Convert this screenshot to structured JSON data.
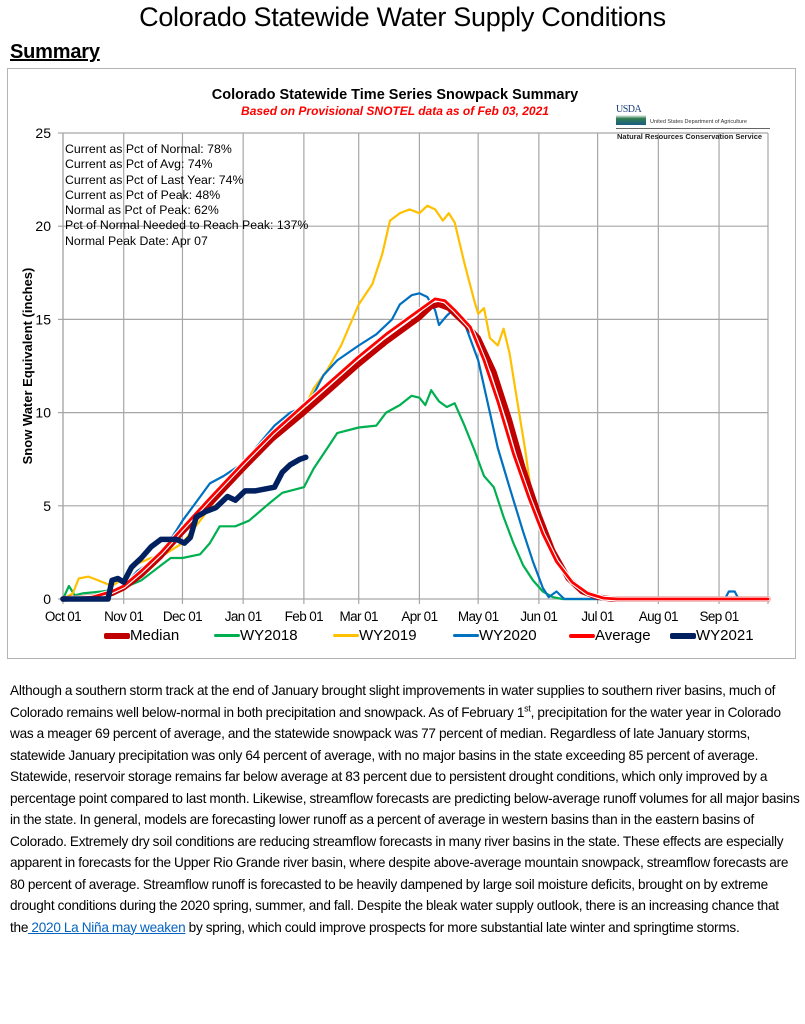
{
  "page": {
    "title": "Colorado Statewide Water Supply Conditions",
    "section_heading": "Summary"
  },
  "chart_data": {
    "type": "line",
    "title": "Colorado Statewide Time Series Snowpack Summary",
    "subtitle": "Based on Provisional SNOTEL data as of Feb 03, 2021",
    "xlabel": "",
    "ylabel": "Snow Water Equivalent (inches)",
    "ylim": [
      0,
      25
    ],
    "yticks": [
      "0",
      "5",
      "10",
      "15",
      "20",
      "25"
    ],
    "ytick_values": [
      0,
      5,
      10,
      15,
      20,
      25
    ],
    "xlim_days": [
      0,
      360
    ],
    "x_unit": "days since Oct 01",
    "xticks": [
      "Oct 01",
      "Nov 01",
      "Dec 01",
      "Jan 01",
      "Feb 01",
      "Mar 01",
      "Apr 01",
      "May 01",
      "Jun 01",
      "Jul 01",
      "Aug 01",
      "Sep 01"
    ],
    "xtick_days": [
      0,
      31,
      61,
      92,
      123,
      151,
      182,
      212,
      243,
      273,
      304,
      335
    ],
    "grid": true,
    "legend_position": "bottom",
    "logo": {
      "mark": "USDA",
      "department": "United States Department of Agriculture",
      "agency": "Natural Resources Conservation Service"
    },
    "stats": [
      "Current as Pct of Normal: 78%",
      "Current as Pct of Avg: 74%",
      "Current as Pct of Last Year: 74%",
      "Current as Pct of Peak: 48%",
      "Normal as Pct of Peak: 62%",
      "Pct of Normal Needed to Reach Peak: 137%",
      "Normal Peak Date: Apr 07"
    ],
    "series": [
      {
        "name": "Median",
        "color": "#c00000",
        "width": "thick",
        "points": [
          [
            0,
            0
          ],
          [
            15,
            0.1
          ],
          [
            25,
            0.3
          ],
          [
            31,
            0.6
          ],
          [
            40,
            1.3
          ],
          [
            50,
            2.3
          ],
          [
            61,
            3.6
          ],
          [
            75,
            5.1
          ],
          [
            92,
            7.0
          ],
          [
            107,
            8.6
          ],
          [
            123,
            10.0
          ],
          [
            137,
            11.3
          ],
          [
            151,
            12.6
          ],
          [
            165,
            13.8
          ],
          [
            182,
            15.1
          ],
          [
            188,
            15.7
          ],
          [
            192,
            15.8
          ],
          [
            197,
            15.6
          ],
          [
            205,
            14.8
          ],
          [
            212,
            14.0
          ],
          [
            220,
            12.2
          ],
          [
            228,
            9.6
          ],
          [
            235,
            7.0
          ],
          [
            243,
            4.5
          ],
          [
            250,
            2.6
          ],
          [
            258,
            1.1
          ],
          [
            265,
            0.4
          ],
          [
            273,
            0.1
          ],
          [
            280,
            0
          ],
          [
            360,
            0
          ]
        ]
      },
      {
        "name": "WY2018",
        "color": "#00b050",
        "width": "thin",
        "points": [
          [
            0,
            0
          ],
          [
            3,
            0.7
          ],
          [
            6,
            0.2
          ],
          [
            10,
            0.3
          ],
          [
            20,
            0.4
          ],
          [
            31,
            0.6
          ],
          [
            40,
            1.0
          ],
          [
            50,
            1.8
          ],
          [
            55,
            2.2
          ],
          [
            61,
            2.2
          ],
          [
            70,
            2.4
          ],
          [
            75,
            3.0
          ],
          [
            80,
            3.9
          ],
          [
            88,
            3.9
          ],
          [
            95,
            4.2
          ],
          [
            105,
            5.1
          ],
          [
            112,
            5.7
          ],
          [
            123,
            6.0
          ],
          [
            128,
            7.0
          ],
          [
            135,
            8.1
          ],
          [
            140,
            8.9
          ],
          [
            151,
            9.2
          ],
          [
            160,
            9.3
          ],
          [
            165,
            10.0
          ],
          [
            172,
            10.4
          ],
          [
            178,
            10.9
          ],
          [
            182,
            10.8
          ],
          [
            185,
            10.4
          ],
          [
            188,
            11.2
          ],
          [
            192,
            10.6
          ],
          [
            196,
            10.3
          ],
          [
            200,
            10.5
          ],
          [
            205,
            9.3
          ],
          [
            210,
            8.0
          ],
          [
            215,
            6.6
          ],
          [
            220,
            6.0
          ],
          [
            225,
            4.4
          ],
          [
            230,
            3.0
          ],
          [
            235,
            1.8
          ],
          [
            240,
            1.0
          ],
          [
            245,
            0.4
          ],
          [
            250,
            0.1
          ],
          [
            255,
            0
          ],
          [
            360,
            0
          ]
        ]
      },
      {
        "name": "WY2019",
        "color": "#ffc000",
        "width": "thin",
        "points": [
          [
            0,
            0
          ],
          [
            5,
            0.3
          ],
          [
            8,
            1.1
          ],
          [
            13,
            1.2
          ],
          [
            18,
            1.0
          ],
          [
            25,
            0.7
          ],
          [
            31,
            1.1
          ],
          [
            38,
            1.9
          ],
          [
            45,
            2.2
          ],
          [
            52,
            2.4
          ],
          [
            61,
            3.0
          ],
          [
            70,
            4.2
          ],
          [
            80,
            5.6
          ],
          [
            92,
            7.0
          ],
          [
            100,
            7.8
          ],
          [
            110,
            9.0
          ],
          [
            123,
            10.2
          ],
          [
            128,
            11.3
          ],
          [
            135,
            12.3
          ],
          [
            142,
            13.6
          ],
          [
            151,
            15.8
          ],
          [
            158,
            16.9
          ],
          [
            163,
            18.5
          ],
          [
            167,
            20.3
          ],
          [
            172,
            20.7
          ],
          [
            177,
            20.9
          ],
          [
            182,
            20.7
          ],
          [
            186,
            21.1
          ],
          [
            190,
            20.9
          ],
          [
            194,
            20.3
          ],
          [
            197,
            20.7
          ],
          [
            200,
            20.2
          ],
          [
            205,
            18.0
          ],
          [
            210,
            16.0
          ],
          [
            212,
            15.3
          ],
          [
            215,
            15.6
          ],
          [
            218,
            14.0
          ],
          [
            222,
            13.6
          ],
          [
            225,
            14.5
          ],
          [
            228,
            13.2
          ],
          [
            232,
            10.6
          ],
          [
            236,
            8.0
          ],
          [
            240,
            5.0
          ],
          [
            243,
            4.0
          ],
          [
            248,
            2.8
          ],
          [
            252,
            2.0
          ],
          [
            258,
            1.0
          ],
          [
            265,
            0.4
          ],
          [
            273,
            0.1
          ],
          [
            280,
            0
          ],
          [
            360,
            0
          ]
        ]
      },
      {
        "name": "WY2020",
        "color": "#0070c0",
        "width": "thin",
        "points": [
          [
            0,
            0
          ],
          [
            20,
            0.1
          ],
          [
            25,
            0.4
          ],
          [
            31,
            0.7
          ],
          [
            38,
            1.5
          ],
          [
            45,
            2.0
          ],
          [
            55,
            3.2
          ],
          [
            61,
            4.2
          ],
          [
            68,
            5.2
          ],
          [
            75,
            6.2
          ],
          [
            82,
            6.6
          ],
          [
            92,
            7.3
          ],
          [
            100,
            8.3
          ],
          [
            108,
            9.3
          ],
          [
            116,
            10.0
          ],
          [
            123,
            10.3
          ],
          [
            128,
            11.0
          ],
          [
            133,
            12.0
          ],
          [
            140,
            12.8
          ],
          [
            151,
            13.6
          ],
          [
            160,
            14.2
          ],
          [
            168,
            15.0
          ],
          [
            172,
            15.8
          ],
          [
            178,
            16.3
          ],
          [
            182,
            16.4
          ],
          [
            186,
            16.2
          ],
          [
            190,
            15.5
          ],
          [
            192,
            14.7
          ],
          [
            196,
            15.2
          ],
          [
            200,
            15.6
          ],
          [
            205,
            14.8
          ],
          [
            212,
            12.8
          ],
          [
            218,
            10.0
          ],
          [
            222,
            8.1
          ],
          [
            228,
            6.0
          ],
          [
            235,
            3.6
          ],
          [
            240,
            2.0
          ],
          [
            245,
            0.6
          ],
          [
            248,
            0.1
          ],
          [
            252,
            0.4
          ],
          [
            256,
            0
          ],
          [
            338,
            0
          ],
          [
            340,
            0.4
          ],
          [
            343,
            0.4
          ],
          [
            345,
            0
          ],
          [
            360,
            0
          ]
        ]
      },
      {
        "name": "Average",
        "color": "#ff0000",
        "width": "medium",
        "points": [
          [
            0,
            0
          ],
          [
            15,
            0.1
          ],
          [
            25,
            0.4
          ],
          [
            31,
            0.7
          ],
          [
            40,
            1.5
          ],
          [
            50,
            2.5
          ],
          [
            61,
            3.8
          ],
          [
            75,
            5.4
          ],
          [
            92,
            7.3
          ],
          [
            107,
            8.9
          ],
          [
            123,
            10.4
          ],
          [
            137,
            11.7
          ],
          [
            151,
            13.0
          ],
          [
            165,
            14.2
          ],
          [
            182,
            15.5
          ],
          [
            190,
            16.1
          ],
          [
            195,
            16.0
          ],
          [
            200,
            15.5
          ],
          [
            208,
            14.6
          ],
          [
            215,
            12.8
          ],
          [
            222,
            10.6
          ],
          [
            230,
            7.8
          ],
          [
            238,
            5.4
          ],
          [
            245,
            3.5
          ],
          [
            252,
            2.0
          ],
          [
            260,
            0.9
          ],
          [
            268,
            0.3
          ],
          [
            276,
            0.05
          ],
          [
            283,
            0
          ],
          [
            360,
            0
          ]
        ]
      },
      {
        "name": "WY2021",
        "color": "#002060",
        "width": "thick",
        "points": [
          [
            0,
            0
          ],
          [
            23,
            0
          ],
          [
            25,
            1.0
          ],
          [
            28,
            1.1
          ],
          [
            31,
            0.9
          ],
          [
            35,
            1.7
          ],
          [
            40,
            2.2
          ],
          [
            45,
            2.8
          ],
          [
            50,
            3.2
          ],
          [
            55,
            3.2
          ],
          [
            58,
            3.2
          ],
          [
            62,
            3.0
          ],
          [
            65,
            3.3
          ],
          [
            68,
            4.4
          ],
          [
            73,
            4.7
          ],
          [
            78,
            4.9
          ],
          [
            84,
            5.5
          ],
          [
            88,
            5.3
          ],
          [
            93,
            5.8
          ],
          [
            98,
            5.8
          ],
          [
            108,
            6.0
          ],
          [
            112,
            6.8
          ],
          [
            116,
            7.2
          ],
          [
            121,
            7.5
          ],
          [
            124,
            7.6
          ]
        ]
      }
    ]
  },
  "legend": [
    {
      "label": "Median",
      "color": "#c00000"
    },
    {
      "label": "WY2018",
      "color": "#00b050"
    },
    {
      "label": "WY2019",
      "color": "#ffc000"
    },
    {
      "label": "WY2020",
      "color": "#0070c0"
    },
    {
      "label": "Average",
      "color": "#ff0000"
    },
    {
      "label": "WY2021",
      "color": "#002060"
    }
  ],
  "body": {
    "p1": "Although a southern storm track at the end of January brought slight improvements in water supplies to southern river basins, much of Colorado remains well below-normal in both precipitation and snowpack. As of February 1",
    "p1_sup": "st",
    "p2": ", precipitation for the water year in Colorado was a meager 69 percent of average, and the statewide snowpack was 77 percent of median. Regardless of late January storms, statewide January precipitation was only 64 percent of average, with no major basins in the state exceeding 85 percent of average. Statewide, reservoir storage remains far below average at 83 percent due to persistent drought conditions, which only improved by a percentage point compared to last month. Likewise, streamflow forecasts are predicting below-average runoff volumes for all major basins in the state. In general, models are forecasting lower runoff as a percent of average in western basins than in the eastern basins of Colorado. Extremely dry soil conditions are reducing streamflow forecasts in many river basins in the state. These effects are especially apparent in forecasts for the Upper Rio Grande river basin, where despite above-average mountain snowpack, streamflow forecasts are 80 percent of average. Streamflow runoff is forecasted to be heavily dampened by large soil moisture deficits, brought on by extreme drought conditions during the 2020 spring, summer, and fall. Despite the bleak water supply outlook, there is an increasing chance that the",
    "link": " 2020 La Niña may weaken",
    "p3": " by spring, which could improve prospects for more substantial late winter and springtime storms."
  }
}
